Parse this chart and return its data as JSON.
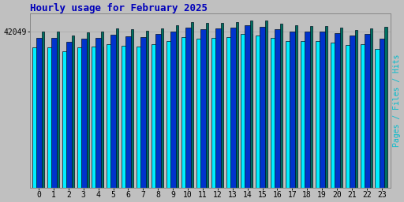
{
  "title": "Hourly usage for February 2025",
  "hours": [
    0,
    1,
    2,
    3,
    4,
    5,
    6,
    7,
    8,
    9,
    10,
    11,
    12,
    13,
    14,
    15,
    16,
    17,
    18,
    19,
    20,
    21,
    22,
    23
  ],
  "pages": [
    0.93,
    0.93,
    0.91,
    0.928,
    0.93,
    0.95,
    0.945,
    0.938,
    0.952,
    0.968,
    0.99,
    0.982,
    0.985,
    0.99,
    1.0,
    0.996,
    0.98,
    0.968,
    0.966,
    0.964,
    0.958,
    0.942,
    0.95,
    0.96
  ],
  "files": [
    0.895,
    0.895,
    0.872,
    0.892,
    0.895,
    0.912,
    0.906,
    0.9,
    0.916,
    0.932,
    0.956,
    0.948,
    0.95,
    0.956,
    0.968,
    0.962,
    0.948,
    0.934,
    0.932,
    0.93,
    0.924,
    0.908,
    0.916,
    0.888
  ],
  "hits": [
    0.84,
    0.84,
    0.814,
    0.838,
    0.842,
    0.856,
    0.848,
    0.842,
    0.858,
    0.876,
    0.9,
    0.892,
    0.895,
    0.9,
    0.916,
    0.908,
    0.894,
    0.878,
    0.876,
    0.874,
    0.866,
    0.85,
    0.858,
    0.828
  ],
  "ymax": 1.04,
  "ytick_val": 0.93,
  "ytick_label": "42049",
  "ylabel_right": "Pages / Files / Hits",
  "bar_color_pages": "#007060",
  "bar_color_files": "#0033CC",
  "bar_color_hits": "#00EEFF",
  "bar_edge_color": "#001020",
  "bg_color": "#C0C0C0",
  "title_color": "#0000BB",
  "ylabel_right_color": "#00BBCC",
  "title_fontsize": 9,
  "tick_fontsize": 7,
  "ylabel_right_fontsize": 7,
  "bw_hits": 0.75,
  "bw_files": 0.42,
  "bw_pages": 0.16,
  "off_hits": -0.06,
  "off_files": 0.04,
  "off_pages": 0.28
}
